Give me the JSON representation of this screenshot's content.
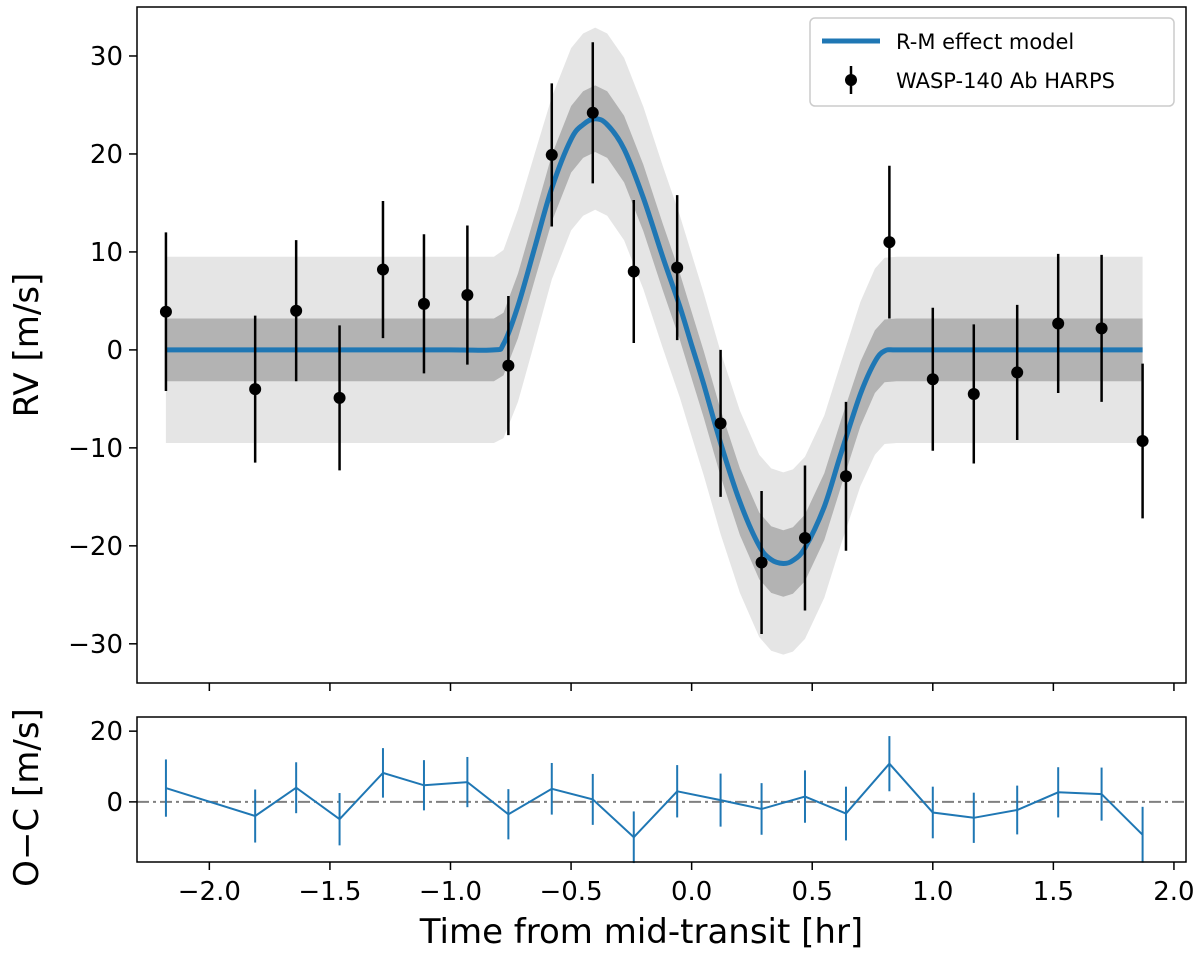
{
  "chart_data": [
    {
      "type": "line",
      "panel": "main",
      "title": "",
      "xlabel": "",
      "ylabel": "RV [m/s]",
      "xlim": [
        -2.3,
        2.05
      ],
      "ylim": [
        -34,
        35
      ],
      "yticks": [
        -30,
        -20,
        -10,
        0,
        10,
        20,
        30
      ],
      "ytick_labels": [
        "−30",
        "−20",
        "−10",
        "0",
        "10",
        "20",
        "30"
      ],
      "xticks": [
        -2.0,
        -1.5,
        -1.0,
        -0.5,
        0.0,
        0.5,
        1.0,
        1.5,
        2.0
      ],
      "grid": false,
      "legend_position": "top-right",
      "legend": [
        {
          "label": "R-M effect model",
          "kind": "line"
        },
        {
          "label": "WASP-140 Ab HARPS",
          "kind": "errorbar"
        }
      ],
      "model": {
        "name": "R-M effect model",
        "color": "#1f77b4",
        "x": [
          -2.18,
          -1.8,
          -1.4,
          -1.0,
          -0.82,
          -0.78,
          -0.72,
          -0.65,
          -0.58,
          -0.5,
          -0.45,
          -0.4,
          -0.35,
          -0.28,
          -0.2,
          -0.12,
          -0.05,
          0.0,
          0.05,
          0.12,
          0.2,
          0.28,
          0.33,
          0.38,
          0.42,
          0.47,
          0.55,
          0.62,
          0.7,
          0.76,
          0.8,
          0.85,
          1.0,
          1.4,
          1.87
        ],
        "y": [
          0,
          0,
          0,
          0,
          0,
          0.6,
          4.5,
          10.5,
          16.5,
          21.5,
          23.0,
          23.6,
          23.0,
          20.5,
          15.5,
          9.5,
          4.5,
          0.5,
          -3.5,
          -9.5,
          -15.5,
          -20.0,
          -21.4,
          -21.8,
          -21.5,
          -20.2,
          -16.0,
          -10.5,
          -4.5,
          -1.2,
          -0.1,
          0,
          0,
          0,
          0
        ]
      },
      "bands": {
        "inner_color": "#b3b3b3",
        "outer_color": "#e5e5e5",
        "inner_halfwidth": [
          3.2,
          3.2,
          3.2,
          3.2,
          3.2,
          3.2,
          3.3,
          3.3,
          3.4,
          3.4,
          3.4,
          3.4,
          3.4,
          3.4,
          3.4,
          3.4,
          3.4,
          3.4,
          3.4,
          3.4,
          3.4,
          3.4,
          3.4,
          3.4,
          3.4,
          3.4,
          3.4,
          3.4,
          3.3,
          3.2,
          3.2,
          3.2,
          3.2,
          3.2,
          3.2
        ],
        "outer_halfwidth": [
          9.5,
          9.5,
          9.5,
          9.5,
          9.5,
          9.6,
          9.8,
          9.6,
          9.3,
          9.3,
          9.3,
          9.3,
          9.3,
          9.3,
          9.3,
          9.3,
          9.3,
          9.3,
          9.3,
          9.3,
          9.3,
          9.3,
          9.3,
          9.3,
          9.3,
          9.3,
          9.3,
          9.3,
          9.4,
          9.5,
          9.5,
          9.5,
          9.5,
          9.5,
          9.5
        ]
      },
      "series": [
        {
          "name": "WASP-140 Ab HARPS",
          "color": "#000000",
          "x": [
            -2.18,
            -1.81,
            -1.64,
            -1.46,
            -1.28,
            -1.11,
            -0.93,
            -0.76,
            -0.58,
            -0.41,
            -0.24,
            -0.06,
            0.12,
            0.29,
            0.47,
            0.64,
            0.82,
            1.0,
            1.17,
            1.35,
            1.52,
            1.7,
            1.87
          ],
          "y": [
            3.9,
            -4.0,
            4.0,
            -4.9,
            8.2,
            4.7,
            5.6,
            -1.6,
            19.9,
            24.2,
            8.0,
            8.4,
            -7.5,
            -21.7,
            -19.2,
            -12.9,
            11.0,
            -3.0,
            -4.5,
            -2.3,
            2.7,
            2.2,
            -9.3
          ],
          "yerr": [
            8.1,
            7.5,
            7.2,
            7.4,
            7.0,
            7.1,
            7.1,
            7.1,
            7.3,
            7.2,
            7.3,
            7.4,
            7.5,
            7.3,
            7.4,
            7.6,
            7.8,
            7.3,
            7.1,
            6.9,
            7.1,
            7.5,
            7.9
          ]
        }
      ]
    },
    {
      "type": "line",
      "panel": "residuals",
      "title": "",
      "xlabel": "Time from mid-transit [hr]",
      "ylabel": "O−C [m/s]",
      "xlim": [
        -2.3,
        2.05
      ],
      "ylim": [
        -17,
        24
      ],
      "yticks": [
        0,
        20
      ],
      "ytick_labels": [
        "0",
        "20"
      ],
      "xticks": [
        -2.0,
        -1.5,
        -1.0,
        -0.5,
        0.0,
        0.5,
        1.0,
        1.5,
        2.0
      ],
      "xtick_labels": [
        "−2.0",
        "−1.5",
        "−1.0",
        "−0.5",
        "0.0",
        "0.5",
        "1.0",
        "1.5",
        "2.0"
      ],
      "grid": false,
      "reference_line": {
        "y": 0,
        "style": "dash-dot",
        "color": "#808080"
      },
      "series": [
        {
          "name": "O−C",
          "color": "#1f77b4",
          "x": [
            -2.18,
            -1.81,
            -1.64,
            -1.46,
            -1.28,
            -1.11,
            -0.93,
            -0.76,
            -0.58,
            -0.41,
            -0.24,
            -0.06,
            0.12,
            0.29,
            0.47,
            0.64,
            0.82,
            1.0,
            1.17,
            1.35,
            1.52,
            1.7,
            1.87
          ],
          "y": [
            3.9,
            -4.0,
            4.0,
            -4.9,
            8.2,
            4.7,
            5.6,
            -3.5,
            3.7,
            0.7,
            -10.0,
            3.0,
            0.5,
            -2.0,
            1.5,
            -3.3,
            10.8,
            -3.0,
            -4.5,
            -2.3,
            2.7,
            2.2,
            -9.3
          ],
          "yerr": [
            8.1,
            7.5,
            7.2,
            7.4,
            7.0,
            7.1,
            7.1,
            7.1,
            7.3,
            7.2,
            7.3,
            7.4,
            7.5,
            7.3,
            7.4,
            7.6,
            7.8,
            7.3,
            7.1,
            6.9,
            7.1,
            7.5,
            7.9
          ]
        }
      ]
    }
  ]
}
